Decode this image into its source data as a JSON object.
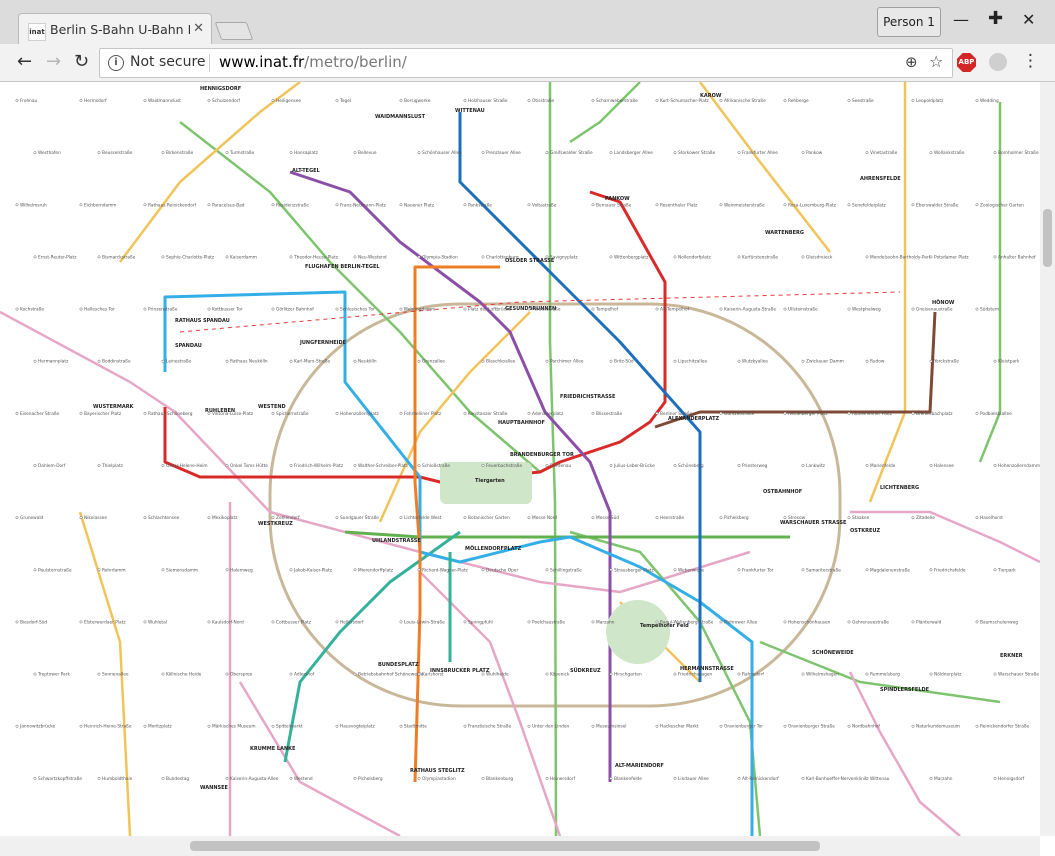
{
  "browser": {
    "tab_title": "Berlin S-Bahn U-Bahn M",
    "tab_favicon": "inat",
    "profile_label": "Person 1",
    "security_label": "Not secure",
    "url_host": "www.inat.fr",
    "url_path": "/metro/berlin/",
    "extension_label": "ABP"
  },
  "map": {
    "line_colors": {
      "U1": "#62b14f",
      "U2": "#d92a2a",
      "U3": "#35b19a",
      "U5": "#7e4a35",
      "U6": "#8b4fa8",
      "U7": "#33aee6",
      "U8": "#1b6fbe",
      "U9": "#ef7d26",
      "ring": "#c9b79a",
      "S-green": "#7ec46e",
      "S-pink": "#e6a7c7",
      "S-orange": "#f1c45a",
      "RE": "#e73a3a"
    },
    "hub_labels": [
      "HENNIGSDORF",
      "WAIDMANNSLUST",
      "WITTENAU",
      "KAROW",
      "ALT-TEGEL",
      "PANKOW",
      "AHRENSFELDE",
      "WARTENBERG",
      "OSLOER STRASSE",
      "FLUGHAFEN BERLIN-TEGEL",
      "GESUNDBRUNNEN",
      "RATHAUS SPANDAU",
      "SPANDAU",
      "JUNGFERNHEIDE",
      "WESTKREUZ",
      "WESTEND",
      "WUSTERMARK",
      "RUHLEBEN",
      "HAUPTBAHNHOF",
      "FRIEDRICHSTRASSE",
      "ALEXANDERPLATZ",
      "BRANDENBURGER TOR",
      "OSTBAHNHOF",
      "WARSCHAUER STRASSE",
      "OSTKREUZ",
      "LICHTENBERG",
      "HÖNOW",
      "UHLANDSTRASSE",
      "MÖLLENDORFPLATZ",
      "BUNDESPLATZ",
      "INNSBRUCKER PLATZ",
      "SÜDKREUZ",
      "HERMANNSTRASSE",
      "SCHÖNEWEIDE",
      "SPINDLERSFELDE",
      "ERKNER",
      "KRUMME LANKE",
      "RATHAUS STEGLITZ",
      "ALT-MARIENDORF",
      "WANNSEE",
      "Tiergarten",
      "Tempelhofer Feld"
    ],
    "station_labels": [
      "Frohnau",
      "Hermsdorf",
      "Waidmannslust",
      "Schulzendorf",
      "Heiligensee",
      "Tegel",
      "Borsigwerke",
      "Holzhauser Straße",
      "Otisstraße",
      "Scharnweberstraße",
      "Kurt-Schumacher-Platz",
      "Afrikanische Straße",
      "Rehberge",
      "Seestraße",
      "Leopoldplatz",
      "Wedding",
      "Westhafen",
      "Beusselstraße",
      "Birkenstraße",
      "Turmstraße",
      "Hansaplatz",
      "Bellevue",
      "Schönhauser Allee",
      "Prenzlauer Allee",
      "Greifswalder Straße",
      "Landsberger Allee",
      "Storkower Straße",
      "Frankfurter Allee",
      "Pankow",
      "Vinetastraße",
      "Wollankstraße",
      "Bornholmer Straße",
      "Wilhelmsruh",
      "Eichborndamm",
      "Rathaus Reinickendorf",
      "Paracelsus-Bad",
      "Residenzstraße",
      "Franz-Neumann-Platz",
      "Nauener Platz",
      "Pankstraße",
      "Voltastraße",
      "Bernauer Straße",
      "Rosenthaler Platz",
      "Weinmeisterstraße",
      "Rosa-Luxemburg-Platz",
      "Senefelderplatz",
      "Eberswalder Straße",
      "Zoologischer Garten",
      "Ernst-Reuter-Platz",
      "Bismarckstraße",
      "Sophie-Charlotte-Platz",
      "Kaiserdamm",
      "Theodor-Heuss-Platz",
      "Neu-Westend",
      "Olympia-Stadion",
      "Charlottenburg",
      "Savignyplatz",
      "Wittenbergplatz",
      "Nollendorfplatz",
      "Kurfürstenstraße",
      "Gleisdreieck",
      "Mendelssohn-Bartholdy-Park",
      "Potsdamer Platz",
      "Anhalter Bahnhof",
      "Kochstraße",
      "Hallesches Tor",
      "Prinzenstraße",
      "Kottbusser Tor",
      "Görlitzer Bahnhof",
      "Schlesisches Tor",
      "Mehringdamm",
      "Platz der Luftbrücke",
      "Paradestraße",
      "Tempelhof",
      "Alt-Tempelhof",
      "Kaiserin-Augusta-Straße",
      "Ullsteinstraße",
      "Westphalweg",
      "Gneisenaustraße",
      "Südstern",
      "Hermannplatz",
      "Boddinstraße",
      "Leinestraße",
      "Rathaus Neukölln",
      "Karl-Marx-Straße",
      "Neukölln",
      "Grenzallee",
      "Blaschkoallee",
      "Parchimer Allee",
      "Britz-Süd",
      "Lipschitzallee",
      "Wutzkyallee",
      "Zwickauer Damm",
      "Rudow",
      "Yorckstraße",
      "Kleistpark",
      "Eisenacher Straße",
      "Bayerischer Platz",
      "Rathaus Schöneberg",
      "Viktoria-Luise-Platz",
      "Spichernstraße",
      "Hohenzollernplatz",
      "Fehrbelliner Platz",
      "Konstanzer Straße",
      "Adenauerplatz",
      "Blissestraße",
      "Berliner Straße",
      "Güntzelstraße",
      "Heidelberger Platz",
      "Rüdesheimer Platz",
      "Breitenbachplatz",
      "Podbielskiallee",
      "Dahlem-Dorf",
      "Thielplatz",
      "Oskar-Helene-Heim",
      "Onkel Toms Hütte",
      "Friedrich-Wilhelm-Platz",
      "Walther-Schreiber-Platz",
      "Schloßstraße",
      "Feuerbachstraße",
      "Friedenau",
      "Julius-Leber-Brücke",
      "Schöneberg",
      "Priesterweg",
      "Lankwitz",
      "Marienfelde",
      "Halensee",
      "Hohenzollerndamm",
      "Grunewald",
      "Nikolassee",
      "Schlachtensee",
      "Mexikoplatz",
      "Zehlendorf",
      "Sundgauer Straße",
      "Lichterfelde West",
      "Botanischer Garten",
      "Messe Nord",
      "Messe Süd",
      "Heerstraße",
      "Pichelsberg",
      "Stresow",
      "Staaken",
      "Zitadelle",
      "Haselhorst",
      "Paulsternstraße",
      "Rohrdamm",
      "Siemensdamm",
      "Halemweg",
      "Jakob-Kaiser-Platz",
      "Mierendorffplatz",
      "Richard-Wagner-Platz",
      "Deutsche Oper",
      "Schillingstraße",
      "Strausberger Platz",
      "Weberwiese",
      "Frankfurter Tor",
      "Samariterstraße",
      "Magdalenenstraße",
      "Friedrichsfelde",
      "Tierpark",
      "Biesdorf-Süd",
      "Elsterwerdaer Platz",
      "Wuhletal",
      "Kaulsdorf-Nord",
      "Cottbusser Platz",
      "Hellersdorf",
      "Louis-Lewin-Straße",
      "Springpfuhl",
      "Poelchaustraße",
      "Marzahn",
      "Raoul-Wallenberg-Straße",
      "Mehrower Allee",
      "Hohenschönhausen",
      "Gehrenseestraße",
      "Plänterwald",
      "Baumschulenweg",
      "Treptower Park",
      "Sonnenallee",
      "Köllnische Heide",
      "Oberspree",
      "Adlershof",
      "Betriebsbahnhof Schöneweide",
      "Karlshorst",
      "Wuhlheide",
      "Köpenick",
      "Hirschgarten",
      "Friedrichshagen",
      "Rahnsdorf",
      "Wilhelmshagen",
      "Rummelsburg",
      "Nöldnerplatz",
      "Warschauer Straße",
      "Jannowitzbrücke",
      "Heinrich-Heine-Straße",
      "Moritzplatz",
      "Märkisches Museum",
      "Spittelmarkt",
      "Hausvogteiplatz",
      "Stadtmitte",
      "Französische Straße",
      "Unter den Linden",
      "Museumsinsel",
      "Hackescher Markt",
      "Oranienburger Tor",
      "Oranienburger Straße",
      "Nordbahnhof",
      "Naturkundemuseum",
      "Reinickendorfer Straße",
      "Schwartzkopffstraße",
      "Humboldthain",
      "Bundestag",
      "Kaiserin-Augusta-Allee",
      "Westend",
      "Pichelsberg",
      "Olympiastadion",
      "Blankenburg",
      "Heinersdorf",
      "Blankenfelde",
      "Lindauer Allee",
      "Alt-Reinickendorf",
      "Karl-Bonhoeffer-Nervenklinik",
      "Wittenau",
      "Marzahn",
      "Hennigsdorf"
    ]
  }
}
